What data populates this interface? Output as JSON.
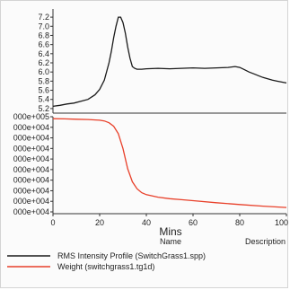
{
  "chart_data": [
    {
      "type": "line",
      "panel": "top",
      "xlim": [
        0,
        100
      ],
      "ylim": [
        5.1,
        7.3
      ],
      "yticks": [
        "7.2",
        "7.0",
        "6.8",
        "6.6",
        "6.4",
        "6.2",
        "6.0",
        "5.8",
        "5.6",
        "5.4",
        "5.2"
      ],
      "series": [
        {
          "name": "RMS Intensity Profile (SwitchGrass1.spp)",
          "color": "#1a1a1a",
          "x": [
            0,
            3,
            6,
            9,
            12,
            15,
            18,
            20,
            22,
            24,
            25,
            26,
            27,
            28,
            29,
            30,
            31,
            32,
            33,
            34,
            35,
            36,
            38,
            40,
            45,
            50,
            55,
            60,
            65,
            70,
            75,
            78,
            80,
            82,
            84,
            86,
            88,
            90,
            92,
            94,
            96,
            98,
            100
          ],
          "y": [
            5.25,
            5.27,
            5.3,
            5.32,
            5.36,
            5.4,
            5.5,
            5.62,
            5.82,
            6.2,
            6.45,
            6.75,
            7.0,
            7.2,
            7.2,
            7.08,
            6.85,
            6.55,
            6.3,
            6.12,
            6.08,
            6.06,
            6.06,
            6.07,
            6.08,
            6.07,
            6.08,
            6.09,
            6.08,
            6.09,
            6.1,
            6.12,
            6.1,
            6.05,
            6.0,
            5.96,
            5.92,
            5.88,
            5.85,
            5.82,
            5.8,
            5.78,
            5.76
          ]
        }
      ]
    },
    {
      "type": "line",
      "panel": "bottom",
      "xlim": [
        0,
        100
      ],
      "xticks": [
        "0",
        "20",
        "40",
        "60",
        "80",
        "100"
      ],
      "xlabel": "Mins",
      "ylim": [
        0.5,
        10.2
      ],
      "yticks": [
        "000e+005",
        "000e+004",
        "000e+004",
        "000e+004",
        "000e+004",
        "000e+004",
        "000e+004",
        "000e+004",
        "000e+004",
        "000e+004"
      ],
      "series": [
        {
          "name": "Weight (switchgrass1.tg1d)",
          "color": "#e8402a",
          "x": [
            0,
            5,
            10,
            15,
            20,
            22,
            24,
            26,
            28,
            30,
            32,
            34,
            36,
            38,
            40,
            45,
            50,
            55,
            60,
            70,
            80,
            90,
            100
          ],
          "y": [
            10.0,
            9.98,
            9.95,
            9.92,
            9.85,
            9.78,
            9.6,
            9.25,
            8.5,
            7.0,
            5.0,
            3.7,
            3.0,
            2.6,
            2.4,
            2.15,
            2.0,
            1.9,
            1.8,
            1.6,
            1.42,
            1.25,
            1.12
          ]
        }
      ]
    }
  ],
  "legend": {
    "header_name": "Name",
    "header_description": "Description",
    "items": [
      {
        "label": "RMS Intensity Profile (SwitchGrass1.spp)",
        "color": "#1a1a1a"
      },
      {
        "label": "Weight (switchgrass1.tg1d)",
        "color": "#e8402a"
      }
    ]
  }
}
